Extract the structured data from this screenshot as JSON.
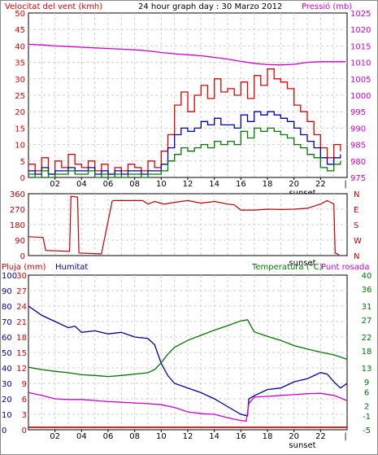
{
  "title": "24 hour graph day : 30 Marzo 2012",
  "colors": {
    "wind": "#e00000",
    "avg": "#0000b0",
    "gust_low": "#007a00",
    "pressure": "#d000d0",
    "dir": "#c00000",
    "humidity": "#0000aa",
    "temp": "#007700",
    "dew": "#d000d0",
    "rain": "#e00000"
  },
  "chart_data": [
    {
      "type": "line",
      "title": "24 hour graph day : 30 Marzo 2012",
      "ylabel": "Velocitat del vent (kmh)",
      "y2label": "Pressió (mb)",
      "ylim": [
        0,
        50
      ],
      "y2lim": [
        975,
        1025
      ],
      "yticks": [
        "0",
        "5",
        "10",
        "15",
        "20",
        "25",
        "30",
        "35",
        "40",
        "45",
        "50"
      ],
      "y2ticks": [
        "975",
        "980",
        "985",
        "990",
        "995",
        "1000",
        "1005",
        "1010",
        "1015",
        "1020",
        "1025"
      ],
      "xlim": [
        0,
        24
      ],
      "xticks": [
        "02",
        "04",
        "06",
        "08",
        "10",
        "12",
        "14",
        "16",
        "18",
        "20",
        "22"
      ],
      "sunset_label": "sunset",
      "series": [
        {
          "name": "gust",
          "color": "#e00000",
          "axis": "y",
          "x": [
            0,
            0.5,
            1,
            1.5,
            2,
            2.5,
            3,
            3.5,
            4,
            4.5,
            5,
            5.5,
            6,
            6.5,
            7,
            7.5,
            8,
            8.5,
            9,
            9.5,
            10,
            10.5,
            11,
            11.5,
            12,
            12.5,
            13,
            13.5,
            14,
            14.5,
            15,
            15.5,
            16,
            16.5,
            17,
            17.5,
            18,
            18.5,
            19,
            19.5,
            20,
            20.5,
            21,
            21.5,
            22,
            22.5,
            23,
            23.5
          ],
          "y": [
            4,
            2,
            6,
            1,
            5,
            3,
            7,
            4,
            3,
            5,
            2,
            4,
            1,
            3,
            2,
            4,
            3,
            2,
            5,
            3,
            8,
            13,
            22,
            26,
            20,
            25,
            28,
            24,
            30,
            26,
            27,
            25,
            29,
            24,
            31,
            28,
            33,
            30,
            29,
            27,
            22,
            20,
            17,
            13,
            9,
            6,
            10,
            8
          ]
        },
        {
          "name": "average",
          "color": "#0000b0",
          "axis": "y",
          "x": [
            0,
            0.5,
            1,
            1.5,
            2,
            2.5,
            3,
            3.5,
            4,
            4.5,
            5,
            5.5,
            6,
            6.5,
            7,
            7.5,
            8,
            8.5,
            9,
            9.5,
            10,
            10.5,
            11,
            11.5,
            12,
            12.5,
            13,
            13.5,
            14,
            14.5,
            15,
            15.5,
            16,
            16.5,
            17,
            17.5,
            18,
            18.5,
            19,
            19.5,
            20,
            20.5,
            21,
            21.5,
            22,
            22.5,
            23,
            23.5
          ],
          "y": [
            2,
            1,
            3,
            1,
            2,
            2,
            3,
            2,
            2,
            3,
            1,
            2,
            1,
            2,
            1,
            2,
            2,
            1,
            2,
            2,
            4,
            9,
            13,
            15,
            14,
            15,
            17,
            16,
            18,
            16,
            16,
            15,
            19,
            17,
            20,
            19,
            20,
            19,
            18,
            17,
            15,
            13,
            11,
            9,
            6,
            4,
            6,
            7
          ]
        },
        {
          "name": "lull",
          "color": "#007a00",
          "axis": "y",
          "x": [
            0,
            0.5,
            1,
            1.5,
            2,
            2.5,
            3,
            3.5,
            4,
            4.5,
            5,
            5.5,
            6,
            6.5,
            7,
            7.5,
            8,
            8.5,
            9,
            9.5,
            10,
            10.5,
            11,
            11.5,
            12,
            12.5,
            13,
            13.5,
            14,
            14.5,
            15,
            15.5,
            16,
            16.5,
            17,
            17.5,
            18,
            18.5,
            19,
            19.5,
            20,
            20.5,
            21,
            21.5,
            22,
            22.5,
            23,
            23.5
          ],
          "y": [
            1,
            0,
            2,
            0,
            1,
            1,
            2,
            1,
            1,
            2,
            0,
            1,
            0,
            1,
            0,
            1,
            1,
            0,
            1,
            1,
            2,
            5,
            7,
            9,
            8,
            9,
            10,
            9,
            11,
            10,
            11,
            10,
            14,
            12,
            15,
            14,
            15,
            14,
            13,
            12,
            10,
            9,
            7,
            6,
            3,
            2,
            4,
            5
          ]
        },
        {
          "name": "pressure",
          "color": "#d000d0",
          "axis": "y2",
          "x": [
            0,
            1,
            2,
            3,
            4,
            5,
            6,
            7,
            8,
            9,
            10,
            11,
            12,
            13,
            14,
            15,
            16,
            17,
            18,
            19,
            20,
            21,
            22,
            23,
            23.9
          ],
          "y": [
            1015.5,
            1015.3,
            1015.0,
            1014.8,
            1014.6,
            1014.4,
            1014.2,
            1014.0,
            1013.8,
            1013.5,
            1013.0,
            1012.6,
            1012.3,
            1012.0,
            1011.5,
            1011.0,
            1010.3,
            1009.7,
            1009.3,
            1009.2,
            1009.4,
            1010.0,
            1010.2,
            1010.2,
            1010.2
          ]
        }
      ]
    },
    {
      "type": "line",
      "ylabel": "",
      "yticks": [
        "0",
        "90",
        "180",
        "270",
        "360"
      ],
      "y2ticks": [
        "N",
        "E",
        "S",
        "W",
        "N"
      ],
      "ylim": [
        0,
        360
      ],
      "xlim": [
        0,
        24
      ],
      "sunset_label": "sunset",
      "series": [
        {
          "name": "direction",
          "color": "#c00000",
          "x": [
            0,
            1.1,
            1.3,
            3.1,
            3.2,
            3.7,
            3.8,
            5.4,
            5.5,
            6.3,
            6.4,
            8.6,
            9.0,
            9.5,
            10.2,
            11,
            12,
            13,
            14,
            15,
            15.5,
            16,
            17,
            18,
            19,
            20,
            21,
            22,
            22.5,
            23,
            23.1,
            23.4
          ],
          "y": [
            110,
            105,
            30,
            25,
            345,
            340,
            15,
            10,
            10,
            315,
            320,
            320,
            300,
            315,
            300,
            310,
            320,
            305,
            315,
            300,
            295,
            265,
            265,
            270,
            268,
            270,
            275,
            300,
            320,
            300,
            15,
            5
          ]
        }
      ]
    },
    {
      "type": "line",
      "title_left": "Pluja (mm)",
      "title_humidity": "Humitat",
      "title_right": "Temperatura (°C)",
      "title_dew": "Punt rosada",
      "ylim": [
        0,
        100
      ],
      "y1ticks": [
        "0",
        "10",
        "20",
        "30",
        "40",
        "50",
        "60",
        "70",
        "80",
        "90",
        "100"
      ],
      "rainticks": [
        "0",
        "3",
        "6",
        "9",
        "12",
        "15",
        "18",
        "21",
        "24",
        "27",
        "30"
      ],
      "y2lim": [
        -5,
        40
      ],
      "y2ticks": [
        "-5",
        "-1",
        "2",
        "6",
        "9",
        "13",
        "18",
        "22",
        "27",
        "31",
        "36",
        "40"
      ],
      "y2tick_values": [
        -5,
        -1,
        2,
        6,
        9,
        13,
        18,
        22,
        27,
        31,
        36,
        40
      ],
      "xlim": [
        0,
        24
      ],
      "xticks": [
        "02",
        "04",
        "06",
        "08",
        "10",
        "12",
        "14",
        "16",
        "18",
        "20",
        "22"
      ],
      "sunset_label": "sunset",
      "series": [
        {
          "name": "Humitat",
          "color": "#0000aa",
          "axis": "y",
          "x": [
            0,
            0.5,
            1,
            2,
            3,
            3.5,
            4,
            5,
            6,
            7,
            8,
            9,
            9.5,
            10,
            10.5,
            11,
            12,
            13,
            14,
            15,
            16,
            16.5,
            16.6,
            17,
            18,
            19,
            20,
            21,
            21.5,
            22,
            22.5,
            23,
            23.5,
            24
          ],
          "y": [
            80,
            77,
            74,
            70,
            66,
            67,
            63,
            64,
            62,
            63,
            60,
            59,
            55,
            43,
            35,
            30,
            27,
            24,
            20,
            15,
            10,
            9,
            20,
            22,
            26,
            27,
            31,
            33,
            35,
            37,
            36,
            31,
            27,
            30
          ]
        },
        {
          "name": "Temperatura",
          "color": "#007700",
          "axis": "y2",
          "x": [
            0,
            1,
            2,
            3,
            4,
            5,
            6,
            7,
            8,
            9,
            9.5,
            10,
            10.5,
            11,
            12,
            13,
            14,
            15,
            16,
            16.5,
            17,
            18,
            19,
            20,
            21,
            22,
            23,
            24
          ],
          "y": [
            13.2,
            12.5,
            12.0,
            11.6,
            11.0,
            10.8,
            10.5,
            10.8,
            11.2,
            11.6,
            12.5,
            14.5,
            17.0,
            19.0,
            21.0,
            22.5,
            24.0,
            25.3,
            26.7,
            27.0,
            23.5,
            22.2,
            21.0,
            19.5,
            18.5,
            17.6,
            16.8,
            15.5
          ]
        },
        {
          "name": "Punt rosada",
          "color": "#d000d0",
          "axis": "y2",
          "x": [
            0,
            1,
            2,
            3,
            4,
            5,
            6,
            7,
            8,
            9,
            10,
            11,
            12,
            13,
            14,
            15,
            16,
            16.4,
            16.6,
            17,
            18,
            19,
            20,
            21,
            22,
            23,
            24
          ],
          "y": [
            5.8,
            5.0,
            4.0,
            3.8,
            3.8,
            3.5,
            3.2,
            3.0,
            2.8,
            2.6,
            2.3,
            1.5,
            0.2,
            -0.3,
            -0.5,
            -1.5,
            -2.3,
            -2.5,
            2.6,
            4.5,
            4.7,
            5.0,
            5.2,
            5.5,
            5.6,
            5.0,
            3.5
          ]
        },
        {
          "name": "Pluja",
          "color": "#e00000",
          "axis": "rain",
          "x": [
            0,
            24
          ],
          "y": [
            0,
            0
          ]
        }
      ]
    }
  ]
}
